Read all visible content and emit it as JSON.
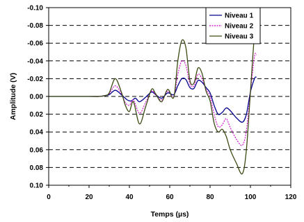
{
  "chart_data": {
    "type": "line",
    "xlabel": "Temps (µs)",
    "ylabel": "Amplitude (V)",
    "xlim": [
      0,
      120
    ],
    "ylim": [
      -0.1,
      0.1
    ],
    "y_inverted": true,
    "x_ticks": [
      0,
      20,
      40,
      60,
      80,
      100,
      120
    ],
    "y_ticks": [
      -0.1,
      -0.08,
      -0.06,
      -0.04,
      -0.02,
      0.0,
      0.02,
      0.04,
      0.06,
      0.08,
      0.1
    ],
    "y_tick_labels": [
      "-0.10",
      "-0.08",
      "-0.06",
      "-0.04",
      "-0.02",
      "0.00",
      "0.02",
      "0.04",
      "0.06",
      "0.08",
      "0.10"
    ],
    "x_tick_labels": [
      "0",
      "20",
      "40",
      "60",
      "80",
      "100",
      "120"
    ],
    "grid": "horizontal dashed",
    "legend_position": "top-right",
    "series": [
      {
        "name": "Niveau 1",
        "color": "#00008B",
        "style": "solid",
        "points": [
          [
            0,
            0
          ],
          [
            20,
            0
          ],
          [
            25,
            0
          ],
          [
            28,
            -0.001
          ],
          [
            30,
            -0.002
          ],
          [
            33,
            -0.007
          ],
          [
            36,
            -0.002
          ],
          [
            39,
            0.004
          ],
          [
            41,
            0.005
          ],
          [
            43,
            0.002
          ],
          [
            45,
            0.006
          ],
          [
            48,
            0.001
          ],
          [
            51,
            -0.005
          ],
          [
            53,
            -0.002
          ],
          [
            56,
            0.002
          ],
          [
            59,
            -0.004
          ],
          [
            62,
            -0.002
          ],
          [
            64,
            -0.012
          ],
          [
            66,
            -0.02
          ],
          [
            68,
            -0.019
          ],
          [
            70,
            -0.01
          ],
          [
            72,
            -0.009
          ],
          [
            74,
            -0.018
          ],
          [
            76,
            -0.016
          ],
          [
            78,
            -0.01
          ],
          [
            80,
            -0.004
          ],
          [
            82,
            0.01
          ],
          [
            84,
            0.02
          ],
          [
            86,
            0.018
          ],
          [
            88,
            0.013
          ],
          [
            90,
            0.016
          ],
          [
            93,
            0.024
          ],
          [
            96,
            0.029
          ],
          [
            98,
            0.02
          ],
          [
            100,
            -0.005
          ],
          [
            102,
            -0.02
          ],
          [
            103,
            -0.022
          ]
        ]
      },
      {
        "name": "Niveau 2",
        "color": "#CC00CC",
        "style": "dashed",
        "points": [
          [
            0,
            0
          ],
          [
            20,
            0
          ],
          [
            25,
            0
          ],
          [
            28,
            -0.001
          ],
          [
            30,
            -0.003
          ],
          [
            33,
            -0.012
          ],
          [
            36,
            -0.003
          ],
          [
            38,
            0.007
          ],
          [
            40,
            0.01
          ],
          [
            42,
            0.004
          ],
          [
            45,
            0.019
          ],
          [
            48,
            0.007
          ],
          [
            51,
            -0.006
          ],
          [
            53,
            -0.002
          ],
          [
            56,
            0.004
          ],
          [
            59,
            -0.006
          ],
          [
            62,
            0.0
          ],
          [
            64,
            -0.025
          ],
          [
            66,
            -0.04
          ],
          [
            68,
            -0.035
          ],
          [
            70,
            -0.014
          ],
          [
            72,
            -0.012
          ],
          [
            74,
            -0.025
          ],
          [
            76,
            -0.02
          ],
          [
            78,
            -0.008
          ],
          [
            80,
            0.0
          ],
          [
            82,
            0.02
          ],
          [
            84,
            0.034
          ],
          [
            86,
            0.032
          ],
          [
            88,
            0.025
          ],
          [
            90,
            0.035
          ],
          [
            93,
            0.048
          ],
          [
            96,
            0.055
          ],
          [
            98,
            0.038
          ],
          [
            100,
            -0.005
          ],
          [
            102,
            -0.045
          ],
          [
            103,
            -0.047
          ]
        ]
      },
      {
        "name": "Niveau 3",
        "color": "#3B4A12",
        "style": "solid",
        "points": [
          [
            0,
            0
          ],
          [
            20,
            0
          ],
          [
            25,
            0
          ],
          [
            28,
            -0.001
          ],
          [
            30,
            -0.004
          ],
          [
            33,
            -0.02
          ],
          [
            36,
            -0.005
          ],
          [
            38,
            0.01
          ],
          [
            40,
            0.017
          ],
          [
            42,
            0.006
          ],
          [
            45,
            0.031
          ],
          [
            48,
            0.012
          ],
          [
            51,
            -0.008
          ],
          [
            53,
            -0.003
          ],
          [
            56,
            0.006
          ],
          [
            59,
            -0.008
          ],
          [
            62,
            0.001
          ],
          [
            64,
            -0.04
          ],
          [
            66,
            -0.063
          ],
          [
            68,
            -0.055
          ],
          [
            70,
            -0.018
          ],
          [
            72,
            -0.015
          ],
          [
            74,
            -0.032
          ],
          [
            76,
            -0.026
          ],
          [
            78,
            -0.006
          ],
          [
            80,
            0.005
          ],
          [
            82,
            0.03
          ],
          [
            84,
            0.04
          ],
          [
            86,
            0.037
          ],
          [
            88,
            0.045
          ],
          [
            90,
            0.06
          ],
          [
            93,
            0.075
          ],
          [
            96,
            0.087
          ],
          [
            98,
            0.06
          ],
          [
            100,
            -0.005
          ],
          [
            102,
            -0.07
          ],
          [
            103,
            -0.076
          ]
        ]
      }
    ]
  }
}
